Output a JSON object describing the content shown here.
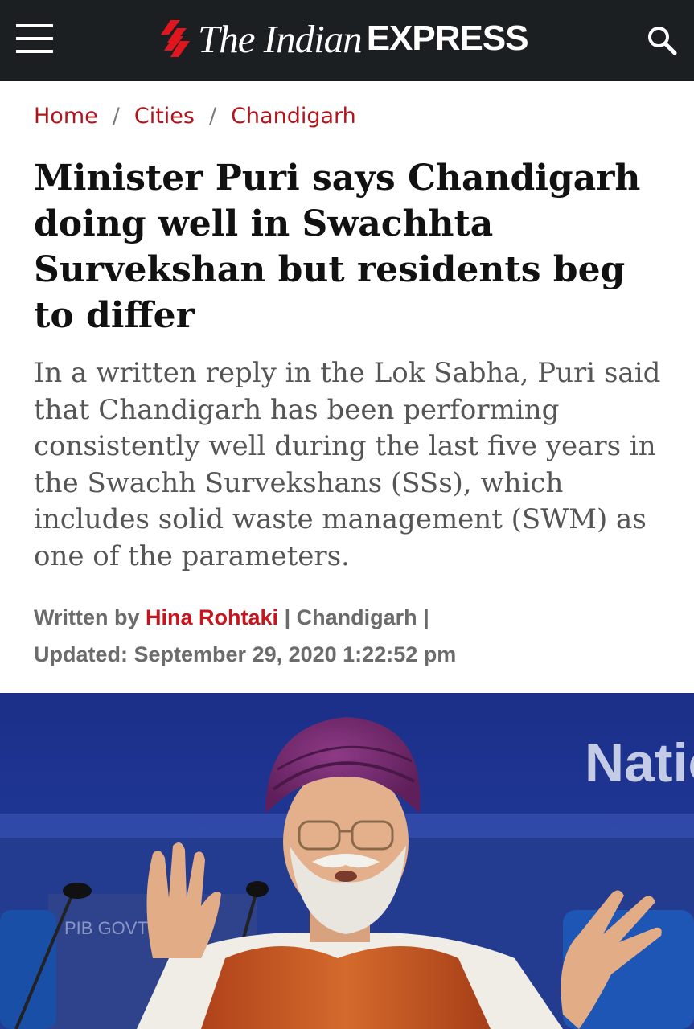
{
  "header": {
    "menu_icon": "hamburger-menu-icon",
    "logo": {
      "part1": "The Indian",
      "part2": "EXPRESS"
    },
    "search_icon": "search-icon",
    "background": "#1c1f22"
  },
  "breadcrumb": [
    {
      "label": "Home"
    },
    {
      "label": "Cities"
    },
    {
      "label": "Chandigarh"
    }
  ],
  "breadcrumb_separator": "/",
  "article": {
    "headline": "Minister Puri says Chandigarh doing well in Swachhta Survekshan but residents beg to differ",
    "summary": "In a written reply in the Lok Sabha, Puri said that Chandigarh has been performing consistently well during the last five years in the Swachh Survekshans (SSs), which includes solid waste management (SWM) as one of the parameters.",
    "byline": {
      "written_by_label": "Written by",
      "author": "Hina Rohtaki",
      "divider": "|",
      "location": "Chandigarh",
      "updated_label": "Updated:",
      "updated_value": "September 29, 2020 1:22:52 pm"
    },
    "photo": {
      "backdrop_text": "Natio",
      "panel_text": "PIB GOVT"
    }
  },
  "colors": {
    "accent_red": "#c8141c",
    "headline": "#111111",
    "summary": "#555555",
    "byline": "#6b6b6b"
  }
}
